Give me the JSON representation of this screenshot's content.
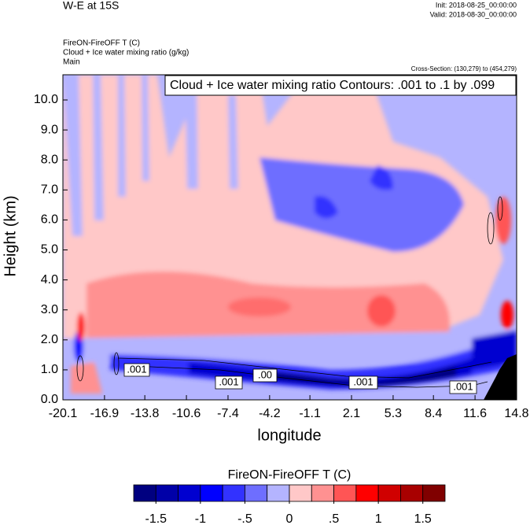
{
  "chart_data": {
    "type": "contour",
    "title": "W-E at 15S",
    "init": "Init: 2018-08-25_00:00:00",
    "valid": "Valid: 2018-08-30_00:00:00",
    "field_title": "FireON-FireOFF T   (C)",
    "contour_field": "Cloud + Ice water mixing ratio   (g/kg)",
    "domain": "Main",
    "cross_section": "Cross-Section: (130,279) to (454,279)",
    "contour_info": "Cloud + Ice water mixing ratio Contours: .001 to .1 by .099",
    "contour_labels": [
      ".001",
      ".001",
      ".00",
      ".001",
      ".001"
    ],
    "y_label": "Height (km)",
    "x_label": "longitude",
    "xlim": [
      -20.1,
      14.8
    ],
    "xticks": [
      -20.1,
      -16.9,
      -13.8,
      -10.6,
      -7.4,
      -4.2,
      -1.1,
      2.1,
      5.3,
      8.4,
      11.6,
      14.8
    ],
    "ylim": [
      0,
      10.84
    ],
    "yticks": [
      {
        "value": 0,
        "label": "0.0"
      },
      {
        "value": 1,
        "label": "1.0"
      },
      {
        "value": 2,
        "label": "2.0"
      },
      {
        "value": 3,
        "label": "3.0"
      },
      {
        "value": 4,
        "label": "4.0"
      },
      {
        "value": 5,
        "label": "5.0"
      },
      {
        "value": 6,
        "label": "6.0"
      },
      {
        "value": 7,
        "label": "7.0"
      },
      {
        "value": 8,
        "label": "8.0"
      },
      {
        "value": 9,
        "label": "9.0"
      },
      {
        "value": 10,
        "label": "10.0"
      }
    ],
    "colorbar": {
      "title": "FireON-FireOFF T  (C)",
      "lim": [
        -1.75,
        1.75
      ],
      "colors": [
        "#000080",
        "#0000a8",
        "#0000d0",
        "#0000ff",
        "#3232ff",
        "#6e6eff",
        "#b4b4ff",
        "#ffc8c8",
        "#ff9191",
        "#ff5555",
        "#ff0000",
        "#d00000",
        "#a80000",
        "#800000"
      ],
      "ticks": [
        -1.5,
        -1,
        {
          "value": -0.5,
          "label": "-.5"
        },
        0,
        {
          "value": 0.5,
          "label": ".5"
        },
        1,
        1.5
      ]
    }
  }
}
